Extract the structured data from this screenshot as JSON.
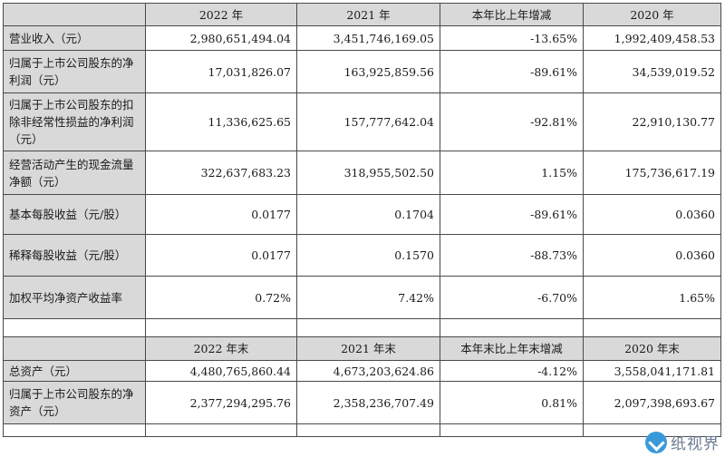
{
  "header1": {
    "corner": "",
    "cols": [
      "2022 年",
      "2021 年",
      "本年比上年增减",
      "2020 年"
    ]
  },
  "rows1": [
    {
      "label": "营业收入（元）",
      "values": [
        "2,980,651,494.04",
        "3,451,746,169.05",
        "-13.65%",
        "1,992,409,458.53"
      ]
    },
    {
      "label": "归属于上市公司股东的净利润（元）",
      "values": [
        "17,031,826.07",
        "163,925,859.56",
        "-89.61%",
        "34,539,019.52"
      ]
    },
    {
      "label": "归属于上市公司股东的扣除非经常性损益的净利润（元）",
      "values": [
        "11,336,625.65",
        "157,777,642.04",
        "-92.81%",
        "22,910,130.77"
      ]
    },
    {
      "label": "经营活动产生的现金流量净额（元）",
      "values": [
        "322,637,683.23",
        "318,955,502.50",
        "1.15%",
        "175,736,617.19"
      ]
    },
    {
      "label": "基本每股收益（元/股）",
      "values": [
        "0.0177",
        "0.1704",
        "-89.61%",
        "0.0360"
      ]
    },
    {
      "label": "稀释每股收益（元/股）",
      "values": [
        "0.0177",
        "0.1570",
        "-88.73%",
        "0.0360"
      ]
    },
    {
      "label": "加权平均净资产收益率",
      "values": [
        "0.72%",
        "7.42%",
        "-6.70%",
        "1.65%"
      ]
    }
  ],
  "header2": {
    "corner": "",
    "cols": [
      "2022 年末",
      "2021 年末",
      "本年末比上年末增减",
      "2020 年末"
    ]
  },
  "rows2": [
    {
      "label": "总资产（元）",
      "values": [
        "4,480,765,860.44",
        "4,673,203,624.86",
        "-4.12%",
        "3,558,041,171.81"
      ]
    },
    {
      "label": "归属于上市公司股东的净资产（元）",
      "values": [
        "2,377,294,295.76",
        "2,358,236,707.49",
        "0.81%",
        "2,097,398,693.67"
      ]
    }
  ],
  "watermark": {
    "text": "纸视界",
    "icon": "paper-plane-icon"
  }
}
